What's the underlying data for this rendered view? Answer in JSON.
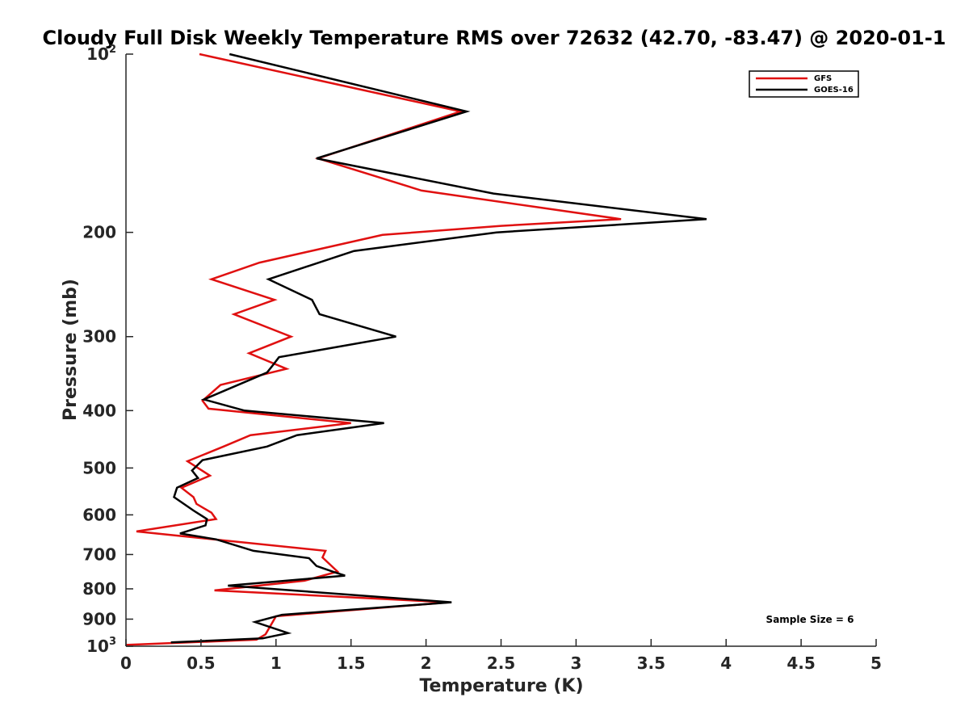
{
  "chart_data": {
    "type": "line",
    "title": "Cloudy Full Disk Weekly Temperature RMS over 72632 (42.70, -83.47) @ 2020-01-1",
    "xlabel": "Temperature (K)",
    "ylabel": "Pressure (mb)",
    "xlim": [
      0,
      5
    ],
    "ylim": [
      100,
      1000
    ],
    "y_scale": "log",
    "y_reversed": true,
    "grid": false,
    "legend_position": "top-right",
    "x_ticks": [
      "0",
      "0.5",
      "1",
      "1.5",
      "2",
      "2.5",
      "3",
      "3.5",
      "4",
      "4.5",
      "5"
    ],
    "y_ticks": [
      {
        "value": 100,
        "base": "10",
        "exp": "2"
      },
      {
        "value": 200,
        "label": "200"
      },
      {
        "value": 300,
        "label": "300"
      },
      {
        "value": 400,
        "label": "400"
      },
      {
        "value": 500,
        "label": "500"
      },
      {
        "value": 600,
        "label": "600"
      },
      {
        "value": 700,
        "label": "700"
      },
      {
        "value": 800,
        "label": "800"
      },
      {
        "value": 900,
        "label": "900"
      },
      {
        "value": 1000,
        "base": "10",
        "exp": "3"
      }
    ],
    "annotation": "Sample Size = 6",
    "series": [
      {
        "name": "GFS",
        "color": "#e01010",
        "points": [
          [
            0.49,
            100
          ],
          [
            2.23,
            125
          ],
          [
            1.28,
            150
          ],
          [
            1.97,
            170
          ],
          [
            3.3,
            190
          ],
          [
            2.5,
            195
          ],
          [
            1.71,
            202
          ],
          [
            0.89,
            225
          ],
          [
            0.57,
            240
          ],
          [
            0.99,
            260
          ],
          [
            0.72,
            275
          ],
          [
            1.1,
            300
          ],
          [
            0.82,
            320
          ],
          [
            1.07,
            340
          ],
          [
            0.63,
            362
          ],
          [
            0.51,
            385
          ],
          [
            0.55,
            397
          ],
          [
            1.5,
            420
          ],
          [
            0.83,
            440
          ],
          [
            0.65,
            460
          ],
          [
            0.41,
            487
          ],
          [
            0.56,
            515
          ],
          [
            0.37,
            540
          ],
          [
            0.45,
            560
          ],
          [
            0.47,
            575
          ],
          [
            0.57,
            595
          ],
          [
            0.6,
            610
          ],
          [
            0.07,
            640
          ],
          [
            1.33,
            690
          ],
          [
            1.31,
            708
          ],
          [
            1.41,
            748
          ],
          [
            1.19,
            775
          ],
          [
            0.59,
            805
          ],
          [
            2.15,
            843
          ],
          [
            1.0,
            890
          ],
          [
            0.93,
            955
          ],
          [
            0.87,
            975
          ],
          [
            0.0,
            995
          ]
        ]
      },
      {
        "name": "GOES-16",
        "color": "#000000",
        "points": [
          [
            0.69,
            100
          ],
          [
            2.27,
            125
          ],
          [
            1.27,
            150
          ],
          [
            2.45,
            172
          ],
          [
            3.87,
            190
          ],
          [
            2.47,
            200
          ],
          [
            1.52,
            215
          ],
          [
            0.95,
            240
          ],
          [
            1.24,
            260
          ],
          [
            1.29,
            275
          ],
          [
            1.8,
            300
          ],
          [
            1.02,
            325
          ],
          [
            0.98,
            335
          ],
          [
            0.94,
            345
          ],
          [
            0.52,
            383
          ],
          [
            0.79,
            400
          ],
          [
            1.72,
            420
          ],
          [
            1.14,
            440
          ],
          [
            0.94,
            460
          ],
          [
            0.51,
            485
          ],
          [
            0.44,
            505
          ],
          [
            0.48,
            520
          ],
          [
            0.34,
            540
          ],
          [
            0.32,
            560
          ],
          [
            0.45,
            590
          ],
          [
            0.54,
            610
          ],
          [
            0.53,
            625
          ],
          [
            0.36,
            645
          ],
          [
            0.6,
            660
          ],
          [
            0.85,
            690
          ],
          [
            1.22,
            710
          ],
          [
            1.27,
            732
          ],
          [
            1.39,
            750
          ],
          [
            1.46,
            760
          ],
          [
            0.68,
            790
          ],
          [
            2.17,
            843
          ],
          [
            1.04,
            885
          ],
          [
            0.86,
            910
          ],
          [
            1.08,
            950
          ],
          [
            0.91,
            970
          ],
          [
            0.3,
            985
          ]
        ]
      }
    ]
  }
}
